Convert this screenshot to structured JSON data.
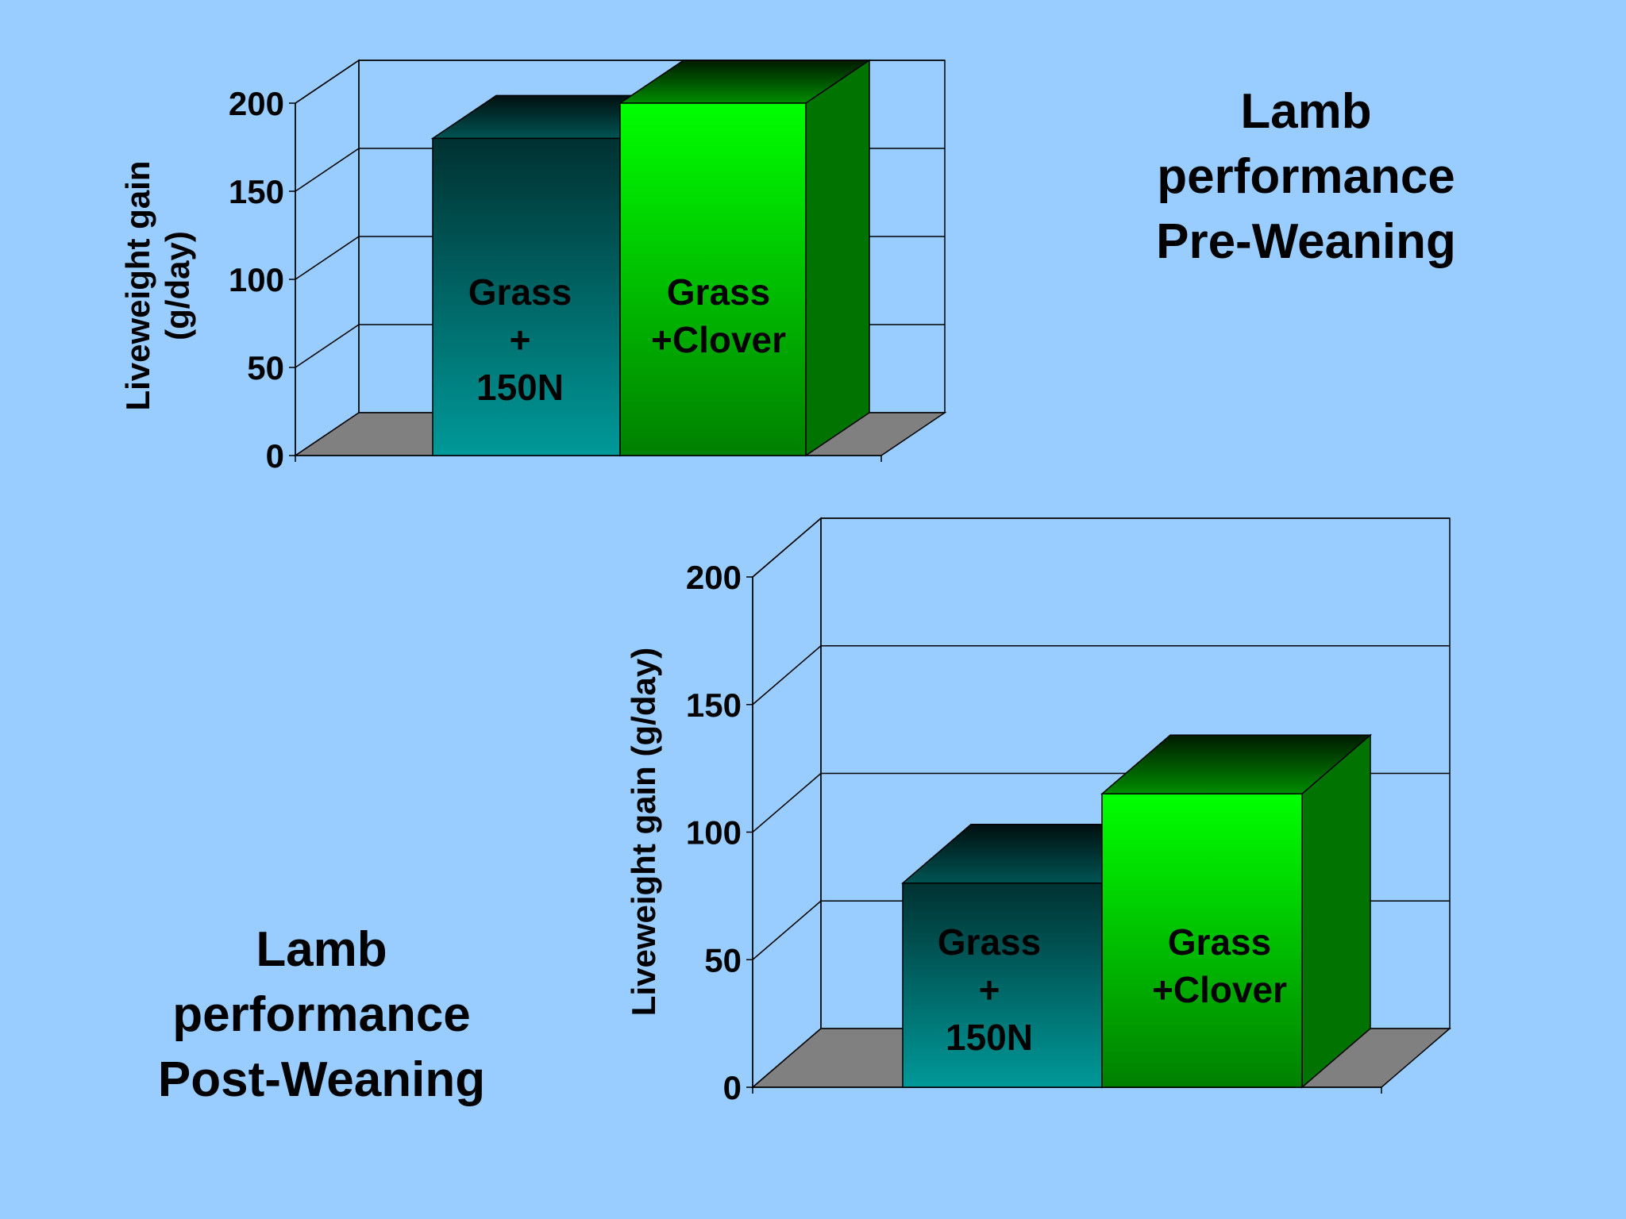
{
  "chart_data": [
    {
      "type": "bar",
      "title": [
        "Lamb",
        "performance",
        "Pre-Weaning"
      ],
      "ylabel": [
        "Liveweight gain",
        "(g/day)"
      ],
      "categories": [
        [
          "Grass",
          "+",
          "150N"
        ],
        [
          "Grass",
          "+Clover"
        ]
      ],
      "values": [
        180,
        200
      ],
      "yticks": [
        "0",
        "50",
        "100",
        "150",
        "200"
      ],
      "ylim": [
        0,
        200
      ],
      "grid": true,
      "colors": {
        "bar1": "#009999",
        "bar2": "#00ff00",
        "floor": "#808080"
      }
    },
    {
      "type": "bar",
      "title": [
        "Lamb",
        "performance",
        "Post-Weaning"
      ],
      "ylabel": [
        "Liveweight gain  (g/day)"
      ],
      "categories": [
        [
          "Grass",
          "+",
          "150N"
        ],
        [
          "Grass",
          "+Clover"
        ]
      ],
      "values": [
        80,
        115
      ],
      "yticks": [
        "0",
        "50",
        "100",
        "150",
        "200"
      ],
      "ylim": [
        0,
        200
      ],
      "grid": true,
      "colors": {
        "bar1": "#009999",
        "bar2": "#00ff00",
        "floor": "#808080"
      }
    }
  ]
}
